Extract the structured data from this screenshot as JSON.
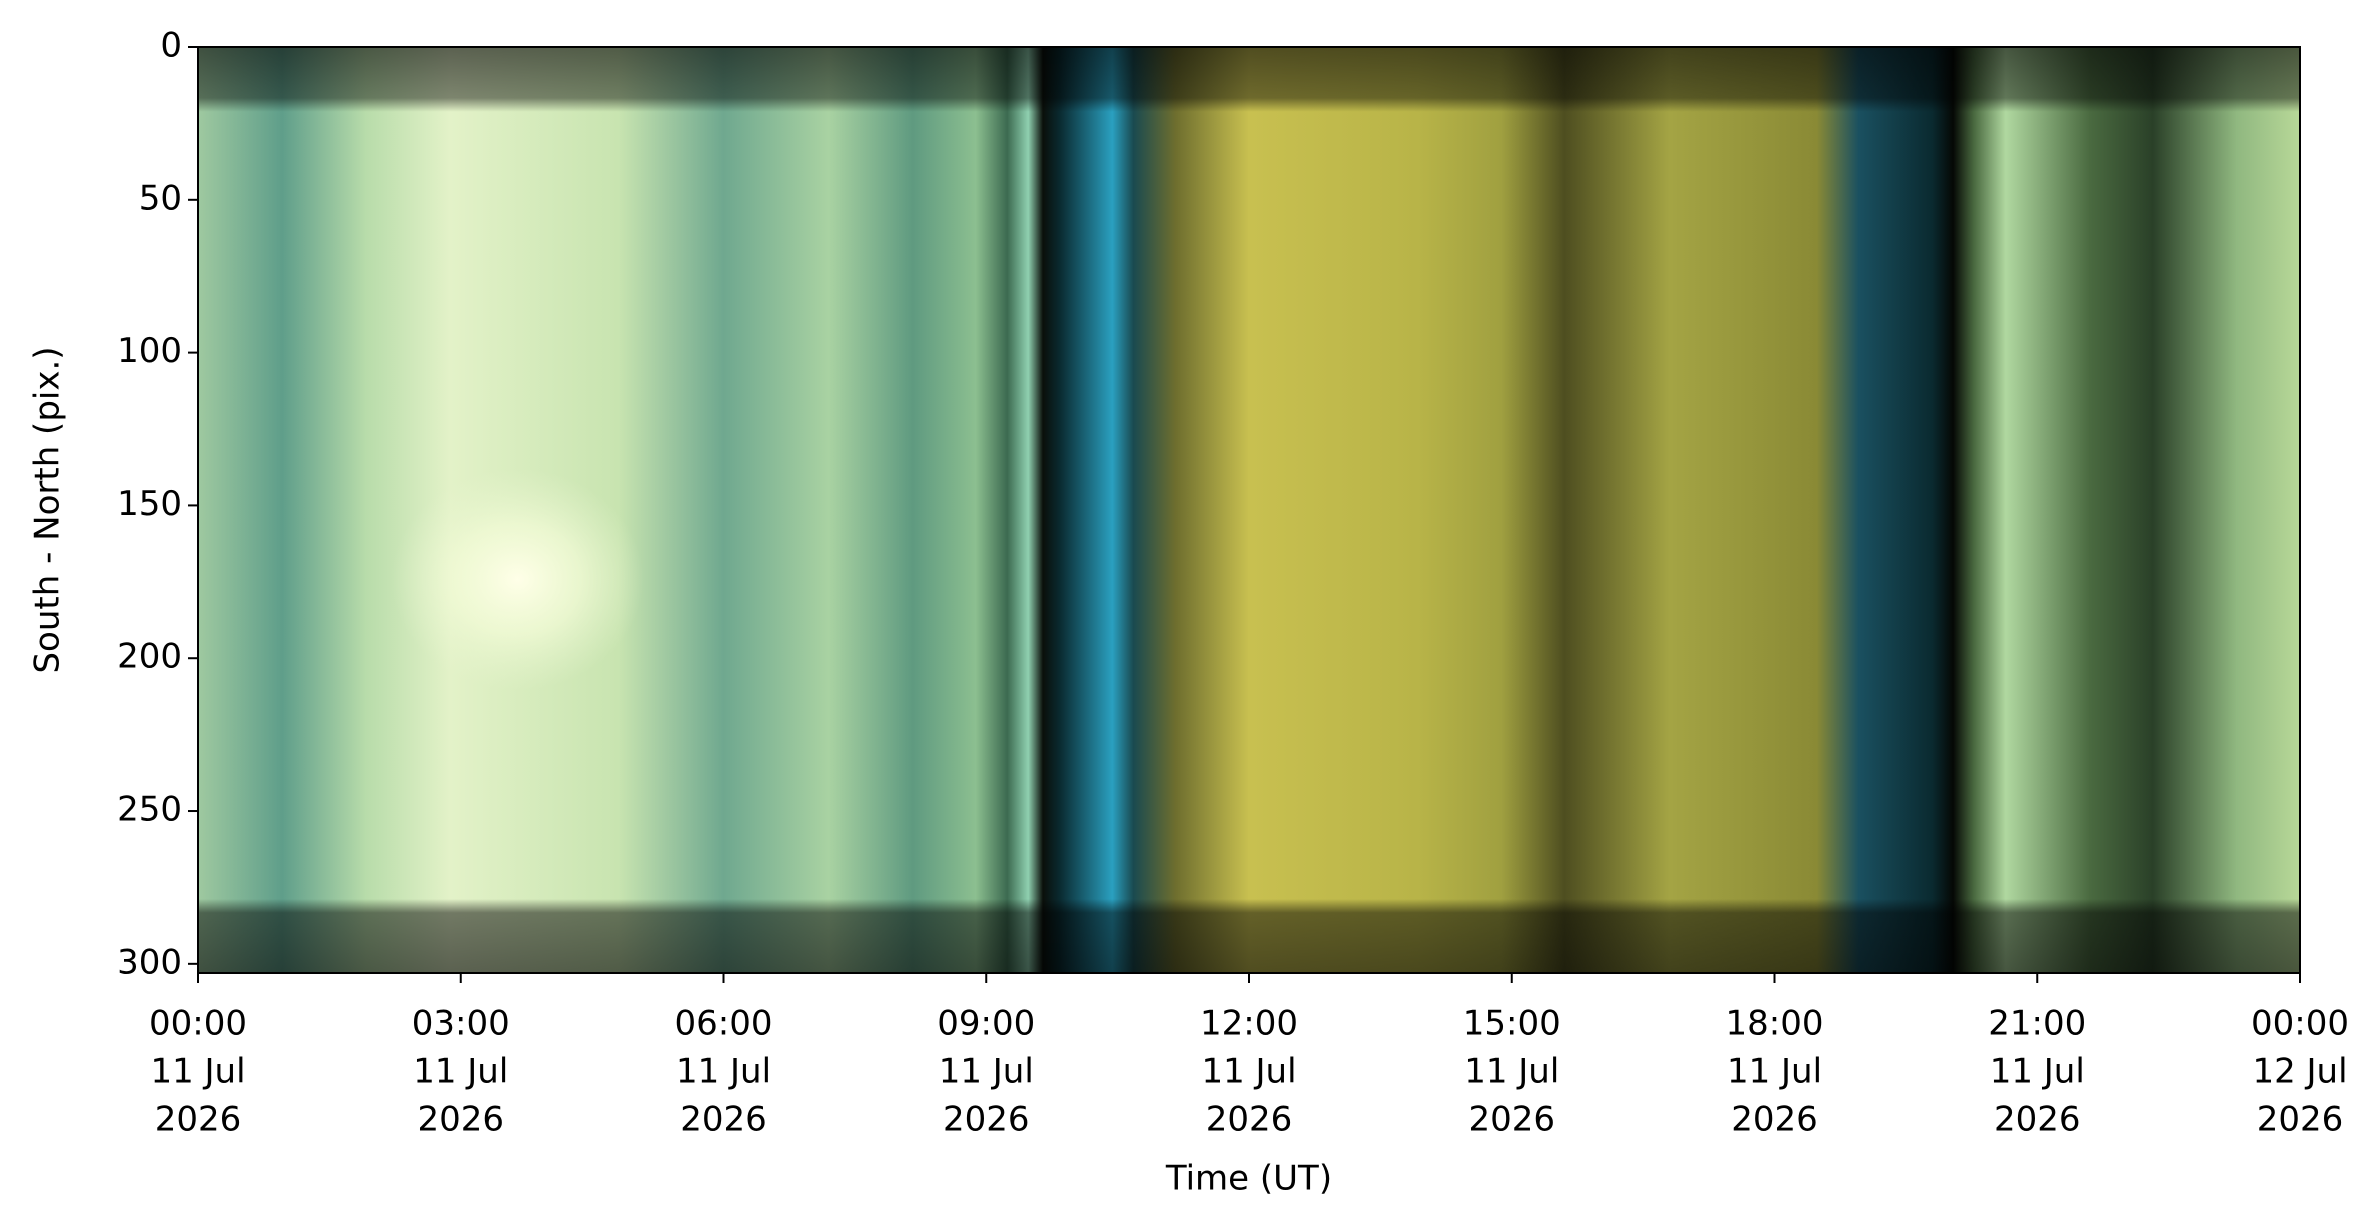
{
  "chart_data": {
    "type": "image",
    "xlabel": "Time (UT)",
    "ylabel": "South - North (pix.)",
    "xlim": [
      "2026-07-11T00:00:00Z",
      "2026-07-12T00:00:00Z"
    ],
    "xticks": [
      {
        "value": "2026-07-11T00:00:00Z",
        "label": [
          "00:00",
          "11 Jul",
          "2026"
        ]
      },
      {
        "value": "2026-07-11T03:00:00Z",
        "label": [
          "03:00",
          "11 Jul",
          "2026"
        ]
      },
      {
        "value": "2026-07-11T06:00:00Z",
        "label": [
          "06:00",
          "11 Jul",
          "2026"
        ]
      },
      {
        "value": "2026-07-11T09:00:00Z",
        "label": [
          "09:00",
          "11 Jul",
          "2026"
        ]
      },
      {
        "value": "2026-07-11T12:00:00Z",
        "label": [
          "12:00",
          "11 Jul",
          "2026"
        ]
      },
      {
        "value": "2026-07-11T15:00:00Z",
        "label": [
          "15:00",
          "11 Jul",
          "2026"
        ]
      },
      {
        "value": "2026-07-11T18:00:00Z",
        "label": [
          "18:00",
          "11 Jul",
          "2026"
        ]
      },
      {
        "value": "2026-07-11T21:00:00Z",
        "label": [
          "21:00",
          "11 Jul",
          "2026"
        ]
      },
      {
        "value": "2026-07-12T00:00:00Z",
        "label": [
          "00:00",
          "12 Jul",
          "2026"
        ]
      }
    ],
    "ylim": [
      303,
      0
    ],
    "yticks": [
      0,
      50,
      100,
      150,
      200,
      250,
      300
    ]
  }
}
